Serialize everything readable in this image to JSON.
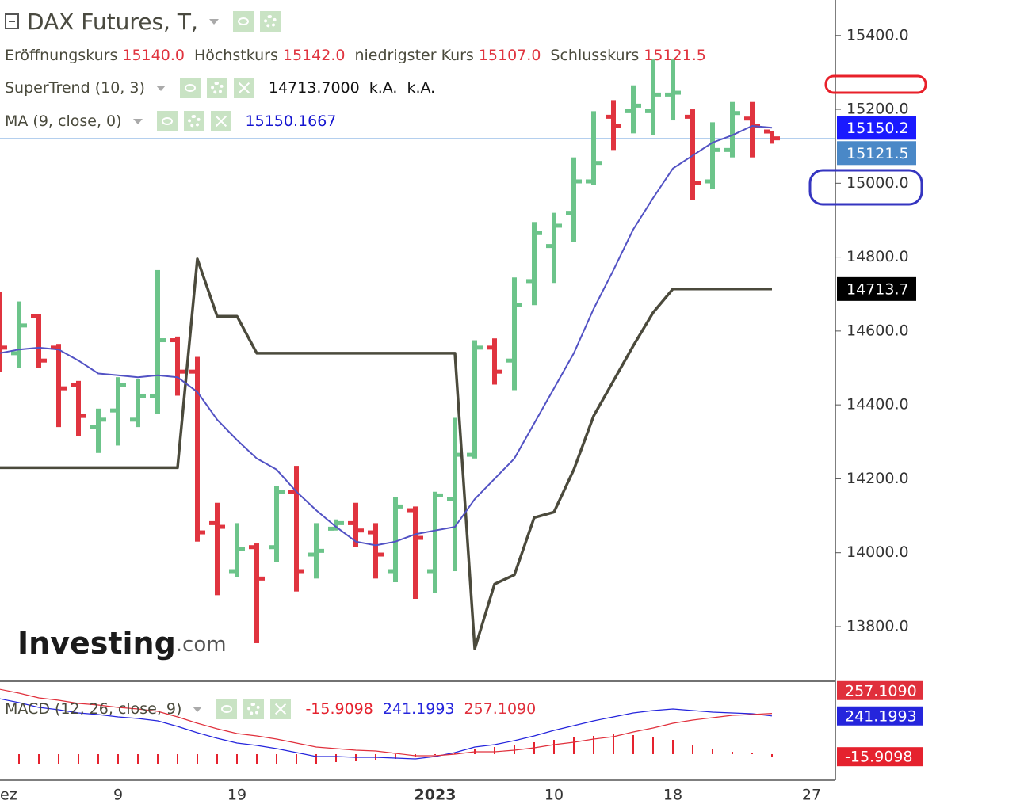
{
  "chart_data": [
    {
      "type": "ohlc",
      "title": "DAX Futures, T,",
      "ohlc_legend": [
        {
          "label": "Eröffnungskurs",
          "value": "15140.0"
        },
        {
          "label": "Höchstkurs",
          "value": "15142.0"
        },
        {
          "label": "niedrigster Kurs",
          "value": "15107.0"
        },
        {
          "label": "Schlusskurs",
          "value": "15121.5"
        }
      ],
      "categories": [
        "ez",
        null,
        null,
        null,
        null,
        null,
        "9",
        null,
        null,
        null,
        null,
        null,
        "19",
        null,
        null,
        null,
        null,
        null,
        null,
        null,
        null,
        null,
        "2023",
        null,
        null,
        null,
        null,
        null,
        "10",
        null,
        null,
        null,
        null,
        null,
        "18",
        null,
        null,
        null,
        null,
        null,
        null,
        "27"
      ],
      "open": [
        14680,
        14540,
        14640,
        14555,
        14455,
        14340,
        14385,
        14360,
        14425,
        14575,
        14490,
        14080,
        13950,
        14015,
        14015,
        14165,
        13995,
        14065,
        14080,
        14055,
        13950,
        14115,
        13950,
        14145,
        14265,
        14555,
        14520,
        14735,
        14830,
        14920,
        15005,
        15180,
        15195,
        15195,
        15240,
        15180,
        15005,
        15090,
        15175,
        15140,
        null,
        null
      ],
      "high": [
        14705,
        14680,
        14645,
        14565,
        14465,
        14390,
        14475,
        14470,
        14765,
        14585,
        14530,
        14135,
        14080,
        14025,
        14180,
        14235,
        14080,
        14090,
        14135,
        14080,
        14150,
        14125,
        14165,
        14365,
        14575,
        14580,
        14745,
        14895,
        14920,
        15070,
        15195,
        15225,
        15265,
        15335,
        15335,
        15200,
        15165,
        15220,
        15220,
        15142,
        null,
        null
      ],
      "low": [
        14490,
        14500,
        14500,
        14340,
        14315,
        14270,
        14290,
        14340,
        14375,
        14425,
        14030,
        13885,
        13935,
        13755,
        13975,
        13895,
        13930,
        14060,
        14015,
        13930,
        13920,
        13875,
        13890,
        13950,
        14255,
        14455,
        14440,
        14670,
        14730,
        14840,
        14995,
        15090,
        15135,
        15130,
        15170,
        14955,
        14985,
        15070,
        15070,
        15107,
        null,
        null
      ],
      "close": [
        14555,
        14615,
        14520,
        14445,
        14370,
        14360,
        14455,
        14425,
        14575,
        14490,
        14055,
        14070,
        14010,
        13930,
        14165,
        13950,
        14005,
        14080,
        14060,
        13995,
        14125,
        14040,
        14155,
        14265,
        14555,
        14490,
        14670,
        14865,
        14885,
        15005,
        15055,
        15155,
        15210,
        15240,
        15245,
        15000,
        15090,
        15190,
        15155,
        15121.5,
        null,
        null
      ],
      "colors": {
        "up": "#6cc48a",
        "down": "#e0343f"
      },
      "lines": [
        {
          "name": "SuperTrend (10, 3)",
          "color": "#4b4a3c",
          "legend_values": [
            "14713.7000",
            "k.A.",
            "k.A."
          ],
          "legend_value_color": "#111111",
          "values": [
            14230,
            14230,
            14230,
            14230,
            14230,
            14230,
            14230,
            14230,
            14230,
            14230,
            14795,
            14640,
            14640,
            14540,
            14540,
            14540,
            14540,
            14540,
            14540,
            14540,
            14540,
            14540,
            14540,
            14540,
            13740,
            13915,
            13940,
            14095,
            14110,
            14225,
            14370,
            14465,
            14560,
            14650,
            14713.7,
            14713.7,
            14713.7,
            14713.7,
            14713.7,
            14713.7,
            null,
            null
          ]
        },
        {
          "name": "MA (9, close, 0)",
          "color": "#5252c4",
          "legend_values": [
            "15150.1667"
          ],
          "legend_value_color": "#1515d0",
          "values": [
            14540,
            14550,
            14555,
            14550,
            14520,
            14485,
            14480,
            14475,
            14480,
            14475,
            14435,
            14360,
            14305,
            14255,
            14225,
            14165,
            14115,
            14070,
            14030,
            14020,
            14030,
            14050,
            14060,
            14070,
            14145,
            14200,
            14255,
            14350,
            14445,
            14540,
            14660,
            14765,
            14875,
            14960,
            15040,
            15075,
            15110,
            15130,
            15155,
            15150.1667,
            null,
            null
          ]
        }
      ],
      "price_line_color": "#a9c8ec",
      "ylim": [
        13652,
        15496
      ],
      "yticks": [
        {
          "value": 13800,
          "label": "13800.0"
        },
        {
          "value": 14000,
          "label": "14000.0"
        },
        {
          "value": 14200,
          "label": "14200.0"
        },
        {
          "value": 14400,
          "label": "14400.0"
        },
        {
          "value": 14600,
          "label": "14600.0"
        },
        {
          "value": 14800,
          "label": "14800.0"
        },
        {
          "value": 15000,
          "label": "15000.0"
        },
        {
          "value": 15200,
          "label": "15200.0"
        },
        {
          "value": 15400,
          "label": "15400.0"
        }
      ],
      "price_badges": [
        {
          "value": 15150.1667,
          "label": "15150.2",
          "color": "#1a1aff"
        },
        {
          "value": 15121.5,
          "label": "15121.5",
          "color": "#4a88c7"
        },
        {
          "value": 14713.7,
          "label": "14713.7",
          "color": "#000000"
        }
      ],
      "watermark": {
        "brand": "Investing",
        "suffix": ".com"
      }
    },
    {
      "type": "macd",
      "name": "MACD (12, 26, close, 9)",
      "ylim": [
        -165,
        460
      ],
      "series": [
        {
          "kind": "histogram",
          "color": "#e5222e",
          "legend_value": "-15.9098",
          "values": [
            -60,
            -60,
            -60,
            -60,
            -60,
            -60,
            -60,
            -60,
            -60,
            -60,
            -60,
            -60,
            -60,
            -60,
            -60,
            -60,
            -60,
            -50,
            -45,
            -40,
            -30,
            -20,
            -5,
            10,
            30,
            45,
            60,
            75,
            90,
            105,
            115,
            125,
            120,
            110,
            90,
            60,
            35,
            15,
            5,
            -15.9098,
            null,
            null
          ]
        },
        {
          "kind": "line",
          "color": "#2525dc",
          "legend_value": "241.1993",
          "values": [
            350,
            325,
            295,
            280,
            260,
            250,
            235,
            225,
            210,
            175,
            135,
            100,
            70,
            55,
            35,
            10,
            -15,
            -15,
            -20,
            -20,
            -25,
            -30,
            -15,
            10,
            45,
            60,
            85,
            115,
            150,
            180,
            210,
            235,
            260,
            275,
            285,
            275,
            265,
            260,
            255,
            241.1993,
            null,
            null
          ]
        },
        {
          "kind": "line",
          "color": "#e0303c",
          "legend_value": "257.1090",
          "values": [
            410,
            385,
            355,
            340,
            320,
            310,
            295,
            285,
            270,
            235,
            195,
            160,
            130,
            115,
            95,
            70,
            45,
            35,
            25,
            20,
            5,
            -10,
            -10,
            0,
            15,
            15,
            25,
            40,
            60,
            75,
            95,
            110,
            140,
            165,
            195,
            215,
            230,
            245,
            250,
            257.109,
            null,
            null
          ]
        }
      ]
    }
  ]
}
